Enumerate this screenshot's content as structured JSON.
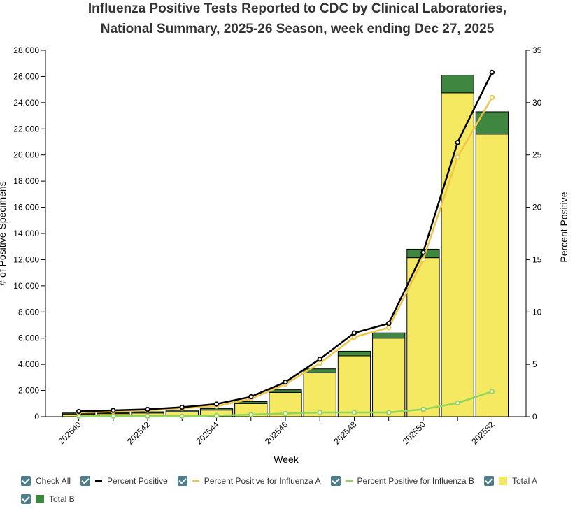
{
  "chart_data": {
    "type": "bar",
    "title": [
      "Influenza Positive Tests Reported to CDC by Clinical Laboratories,",
      "National Summary, 2025-26 Season, week ending Dec 27, 2025"
    ],
    "x_label": "Week",
    "y_label": "# of Positive Specimens",
    "y2_label": "Percent Positive",
    "check_all_label": "Check All",
    "categories": [
      "202540",
      null,
      "202542",
      null,
      "202544",
      null,
      "202546",
      null,
      "202548",
      null,
      "202550",
      null,
      "202552"
    ],
    "ylim": [
      0,
      28000
    ],
    "yticks": [
      0,
      {
        "value": 2000,
        "label": "2,000"
      },
      {
        "value": 4000,
        "label": "4,000"
      },
      {
        "value": 6000,
        "label": "6,000"
      },
      {
        "value": 8000,
        "label": "8,000"
      },
      {
        "value": 10000,
        "label": "10,000"
      },
      {
        "value": 12000,
        "label": "12,000"
      },
      {
        "value": 14000,
        "label": "14,000"
      },
      {
        "value": 16000,
        "label": "16,000"
      },
      {
        "value": 18000,
        "label": "18,000"
      },
      {
        "value": 20000,
        "label": "20,000"
      },
      {
        "value": 22000,
        "label": "22,000"
      },
      {
        "value": 24000,
        "label": "24,000"
      },
      {
        "value": 26000,
        "label": "26,000"
      },
      {
        "value": 28000,
        "label": "28,000"
      }
    ],
    "y2lim": [
      0,
      35
    ],
    "y2ticks": [
      0,
      5,
      10,
      15,
      20,
      25,
      30,
      35
    ],
    "series": [
      {
        "name": "Percent Positive",
        "type": "line",
        "axis": "y2",
        "color": "#000000",
        "values": [
          0.5,
          0.6,
          0.7,
          0.9,
          1.2,
          1.9,
          3.3,
          5.5,
          8.0,
          8.9,
          15.7,
          26.2,
          32.9
        ]
      },
      {
        "name": "Percent Positive for Influenza A",
        "type": "line",
        "axis": "y2",
        "color": "#efc64a",
        "values": [
          0.4,
          0.5,
          0.6,
          0.8,
          1.0,
          1.7,
          3.1,
          5.1,
          7.6,
          8.5,
          15.0,
          24.8,
          30.5
        ]
      },
      {
        "name": "Percent Positive for Influenza B",
        "type": "line",
        "axis": "y2",
        "color": "#8fd65b",
        "values": [
          0.05,
          0.05,
          0.05,
          0.05,
          0.1,
          0.2,
          0.3,
          0.4,
          0.4,
          0.4,
          0.7,
          1.3,
          2.4
        ]
      },
      {
        "name": "Total A",
        "type": "bar",
        "color": "#f5e962",
        "values": [
          200,
          230,
          280,
          350,
          500,
          1000,
          1850,
          3350,
          4650,
          6000,
          12150,
          24750,
          21600
        ]
      },
      {
        "name": "Total B",
        "type": "bar",
        "color": "#3f8640",
        "values": [
          80,
          80,
          90,
          90,
          110,
          150,
          200,
          300,
          350,
          400,
          650,
          1350,
          1700
        ]
      }
    ]
  }
}
